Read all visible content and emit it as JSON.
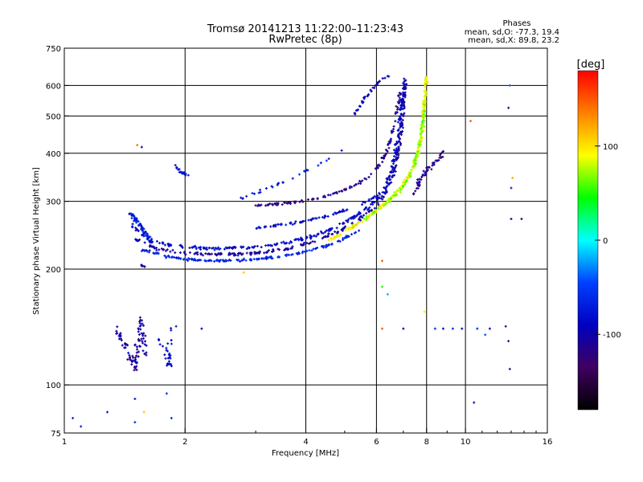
{
  "title": "Tromsø 20141213 11:22:00–11:23:43",
  "subtitle": "RwPretec (8p)",
  "phases": {
    "heading": "Phases",
    "line_o": "mean, sd,O: -77.3, 19.4",
    "line_x": "mean, sd,X:  89.8, 23.2"
  },
  "chart_data": {
    "type": "scatter",
    "xlabel": "Frequency [MHz]",
    "ylabel": "Stationary phase Virtual Height [km]",
    "xscale": "log",
    "yscale": "log",
    "xlim": [
      1,
      16
    ],
    "ylim": [
      75,
      750
    ],
    "xticks": [
      1,
      2,
      4,
      6,
      8,
      10,
      16
    ],
    "xtick_labels": [
      "1",
      "2",
      "4",
      "6",
      "8",
      "10",
      "16"
    ],
    "yticks": [
      75,
      100,
      200,
      300,
      400,
      500,
      600,
      750
    ],
    "ytick_labels": [
      "75",
      "100",
      "200",
      "300",
      "400",
      "500",
      "600",
      "750"
    ],
    "grid_x": [
      2,
      4,
      6,
      8,
      10
    ],
    "grid_y": [
      100,
      200,
      300,
      400,
      500,
      600
    ],
    "colorbar": {
      "label": "[deg]",
      "range": [
        -180,
        180
      ],
      "ticks": [
        100,
        0,
        -100
      ],
      "tick_labels": [
        "100",
        "0",
        "-100"
      ],
      "stops": [
        "#ff0000",
        "#ff8000",
        "#ffff00",
        "#00ff00",
        "#00ffff",
        "#0040ff",
        "#0000c0",
        "#400060",
        "#000000"
      ]
    },
    "traces": [
      {
        "points": [
          [
            1.48,
            260
          ],
          [
            1.55,
            248
          ],
          [
            1.65,
            238
          ],
          [
            1.8,
            232
          ],
          [
            2.0,
            228
          ],
          [
            2.4,
            226
          ],
          [
            3.0,
            228
          ],
          [
            3.6,
            234
          ],
          [
            4.2,
            244
          ],
          [
            4.8,
            258
          ],
          [
            5.3,
            274
          ],
          [
            5.8,
            292
          ],
          [
            6.3,
            322
          ],
          [
            6.6,
            370
          ],
          [
            6.8,
            440
          ],
          [
            6.95,
            540
          ],
          [
            7.05,
            630
          ]
        ],
        "phase": -85,
        "spread": 0.014,
        "count": 320
      },
      {
        "points": [
          [
            1.5,
            240
          ],
          [
            1.7,
            226
          ],
          [
            2.0,
            220
          ],
          [
            2.5,
            218
          ],
          [
            3.0,
            220
          ],
          [
            3.6,
            226
          ],
          [
            4.2,
            236
          ],
          [
            4.8,
            250
          ],
          [
            5.4,
            268
          ],
          [
            6.0,
            292
          ],
          [
            6.4,
            322
          ],
          [
            6.7,
            370
          ],
          [
            6.9,
            440
          ],
          [
            7.0,
            520
          ],
          [
            7.1,
            620
          ]
        ],
        "phase": -105,
        "spread": 0.012,
        "count": 260
      },
      {
        "points": [
          [
            1.55,
            225
          ],
          [
            1.8,
            216
          ],
          [
            2.0,
            212
          ],
          [
            2.5,
            210
          ],
          [
            3.0,
            212
          ],
          [
            3.5,
            216
          ],
          [
            4.0,
            222
          ],
          [
            4.5,
            230
          ],
          [
            5.0,
            240
          ],
          [
            5.5,
            254
          ]
        ],
        "phase": -65,
        "spread": 0.01,
        "count": 170
      },
      {
        "points": [
          [
            1.45,
            282
          ],
          [
            1.5,
            270
          ],
          [
            1.55,
            258
          ],
          [
            1.6,
            246
          ],
          [
            1.65,
            235
          ]
        ],
        "phase": -72,
        "spread": 0.018,
        "count": 60
      },
      {
        "points": [
          [
            3.0,
            256
          ],
          [
            3.8,
            264
          ],
          [
            4.6,
            276
          ],
          [
            5.4,
            292
          ],
          [
            6.0,
            310
          ],
          [
            6.5,
            335
          ]
        ],
        "phase": -88,
        "spread": 0.01,
        "count": 80
      },
      {
        "points": [
          [
            3.0,
            292
          ],
          [
            3.7,
            298
          ],
          [
            4.3,
            305
          ],
          [
            4.8,
            316
          ],
          [
            5.3,
            330
          ],
          [
            5.8,
            350
          ],
          [
            6.2,
            380
          ],
          [
            6.5,
            430
          ],
          [
            6.7,
            500
          ],
          [
            6.9,
            580
          ]
        ],
        "phase": -115,
        "spread": 0.012,
        "count": 130
      },
      {
        "points": [
          [
            4.6,
            238
          ],
          [
            5.2,
            256
          ],
          [
            5.8,
            276
          ],
          [
            6.4,
            300
          ],
          [
            7.0,
            330
          ],
          [
            7.4,
            370
          ],
          [
            7.7,
            420
          ],
          [
            7.85,
            500
          ],
          [
            7.95,
            580
          ],
          [
            8.0,
            640
          ]
        ],
        "phase": 92,
        "spread": 0.014,
        "count": 220
      },
      {
        "points": [
          [
            5.6,
            270
          ],
          [
            6.2,
            290
          ],
          [
            6.8,
            316
          ],
          [
            7.3,
            350
          ],
          [
            7.6,
            400
          ],
          [
            7.8,
            460
          ],
          [
            7.9,
            540
          ]
        ],
        "phase": 68,
        "spread": 0.012,
        "count": 110
      },
      {
        "points": [
          [
            7.2,
            300
          ],
          [
            7.6,
            330
          ],
          [
            8.0,
            360
          ],
          [
            8.4,
            380
          ],
          [
            8.8,
            400
          ]
        ],
        "phase": -110,
        "spread": 0.02,
        "count": 50
      },
      {
        "points": [
          [
            1.88,
            370
          ],
          [
            1.95,
            358
          ],
          [
            2.05,
            350
          ]
        ],
        "phase": -75,
        "spread": 0.012,
        "count": 18
      },
      {
        "points": [
          [
            2.6,
            300
          ],
          [
            3.0,
            315
          ],
          [
            3.6,
            340
          ],
          [
            4.0,
            360
          ],
          [
            4.4,
            378
          ],
          [
            5.0,
            410
          ]
        ],
        "phase": -70,
        "spread": 0.012,
        "count": 28
      },
      {
        "points": [
          [
            5.2,
            490
          ],
          [
            5.5,
            540
          ],
          [
            5.8,
            580
          ],
          [
            6.1,
            615
          ],
          [
            6.4,
            635
          ]
        ],
        "phase": -95,
        "spread": 0.012,
        "count": 36
      },
      {
        "points": [
          [
            1.35,
            140
          ],
          [
            1.4,
            130
          ],
          [
            1.45,
            120
          ],
          [
            1.5,
            110
          ],
          [
            1.55,
            150
          ],
          [
            1.6,
            120
          ]
        ],
        "phase": -105,
        "spread": 0.03,
        "count": 90
      },
      {
        "points": [
          [
            1.72,
            130
          ],
          [
            1.78,
            122
          ],
          [
            1.82,
            112
          ],
          [
            1.86,
            140
          ]
        ],
        "phase": -82,
        "spread": 0.03,
        "count": 30
      },
      {
        "points": [
          [
            1.55,
            205
          ],
          [
            1.6,
            202
          ]
        ],
        "phase": -100,
        "spread": 0.005,
        "count": 8
      }
    ],
    "outliers": [
      {
        "x": 6.2,
        "y": 210,
        "phase": 150
      },
      {
        "x": 6.2,
        "y": 180,
        "phase": 50
      },
      {
        "x": 6.2,
        "y": 140,
        "phase": 150
      },
      {
        "x": 6.4,
        "y": 172,
        "phase": -20
      },
      {
        "x": 7.0,
        "y": 140,
        "phase": -85
      },
      {
        "x": 7.9,
        "y": 155,
        "phase": 100
      },
      {
        "x": 8.4,
        "y": 140,
        "phase": -60
      },
      {
        "x": 8.8,
        "y": 140,
        "phase": -95
      },
      {
        "x": 9.3,
        "y": 140,
        "phase": -60
      },
      {
        "x": 9.8,
        "y": 140,
        "phase": -100
      },
      {
        "x": 10.7,
        "y": 140,
        "phase": -60
      },
      {
        "x": 11.5,
        "y": 140,
        "phase": -110
      },
      {
        "x": 11.2,
        "y": 135,
        "phase": -40
      },
      {
        "x": 12.6,
        "y": 142,
        "phase": -110
      },
      {
        "x": 12.8,
        "y": 130,
        "phase": -120
      },
      {
        "x": 12.9,
        "y": 110,
        "phase": -130
      },
      {
        "x": 13.0,
        "y": 325,
        "phase": -70
      },
      {
        "x": 13.1,
        "y": 345,
        "phase": 120
      },
      {
        "x": 13.0,
        "y": 270,
        "phase": -120
      },
      {
        "x": 13.8,
        "y": 270,
        "phase": -130
      },
      {
        "x": 12.9,
        "y": 600,
        "phase": -40
      },
      {
        "x": 12.8,
        "y": 525,
        "phase": -110
      },
      {
        "x": 10.3,
        "y": 485,
        "phase": 150
      },
      {
        "x": 10.5,
        "y": 90,
        "phase": -100
      },
      {
        "x": 1.05,
        "y": 82,
        "phase": -65
      },
      {
        "x": 1.1,
        "y": 78,
        "phase": -60
      },
      {
        "x": 1.28,
        "y": 85,
        "phase": -70
      },
      {
        "x": 1.5,
        "y": 92,
        "phase": -70
      },
      {
        "x": 1.58,
        "y": 85,
        "phase": 110
      },
      {
        "x": 1.8,
        "y": 95,
        "phase": -60
      },
      {
        "x": 1.85,
        "y": 82,
        "phase": -60
      },
      {
        "x": 1.5,
        "y": 80,
        "phase": -60
      },
      {
        "x": 1.52,
        "y": 420,
        "phase": 140
      },
      {
        "x": 1.56,
        "y": 415,
        "phase": -75
      },
      {
        "x": 2.8,
        "y": 196,
        "phase": 110
      },
      {
        "x": 2.2,
        "y": 140,
        "phase": -90
      },
      {
        "x": 1.9,
        "y": 142,
        "phase": -70
      }
    ]
  }
}
